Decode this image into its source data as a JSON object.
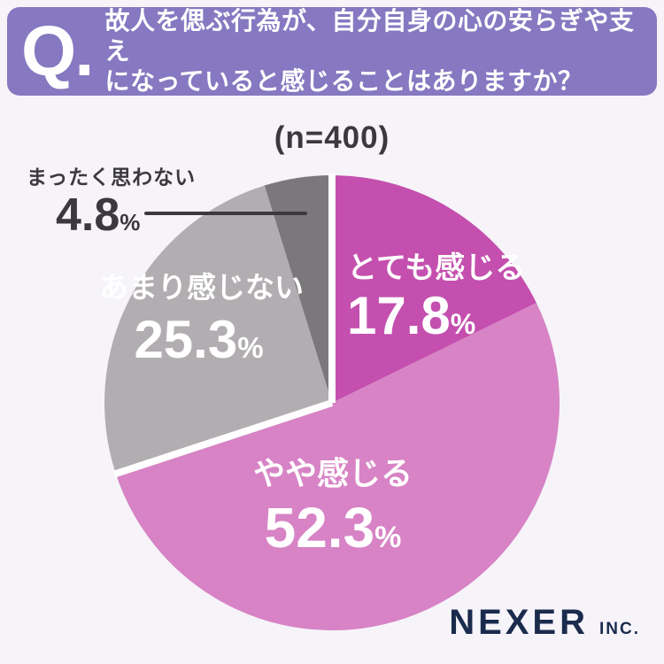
{
  "header": {
    "q_label": "Q.",
    "question_line1": "故人を偲ぶ行為が、自分自身の心の安らぎや支え",
    "question_line2": "になっていると感じることはありますか？"
  },
  "sample_size_label": "(n=400)",
  "chart_data": {
    "type": "pie",
    "title": "故人を偲ぶ行為が、自分自身の心の安らぎや支えになっていると感じることはありますか？",
    "sample_size": 400,
    "unit": "%",
    "start_angle_deg": 0,
    "direction": "clockwise",
    "segments": [
      {
        "label": "とても感じる",
        "value": 17.8,
        "color": "#c44fae",
        "text_color": "#ffffff"
      },
      {
        "label": "やや感じる",
        "value": 52.3,
        "color": "#d783c5",
        "text_color": "#ffffff"
      },
      {
        "label": "あまり感じない",
        "value": 25.3,
        "color": "#b1adb1",
        "text_color": "#ffffff"
      },
      {
        "label": "まったく思わない",
        "value": 4.8,
        "color": "#7b787b",
        "text_color": "#3b393f"
      }
    ],
    "group_gap_before": [
      0,
      2
    ],
    "legend_position": "on-slices"
  },
  "logo": {
    "name": "NEXER",
    "suffix": "INC."
  },
  "colors": {
    "header_bg": "#8678c1",
    "page_bg": "#f6f4f9",
    "text_dark": "#3b393f",
    "logo_navy": "#1b2b4e",
    "gap_white": "#ffffff"
  }
}
